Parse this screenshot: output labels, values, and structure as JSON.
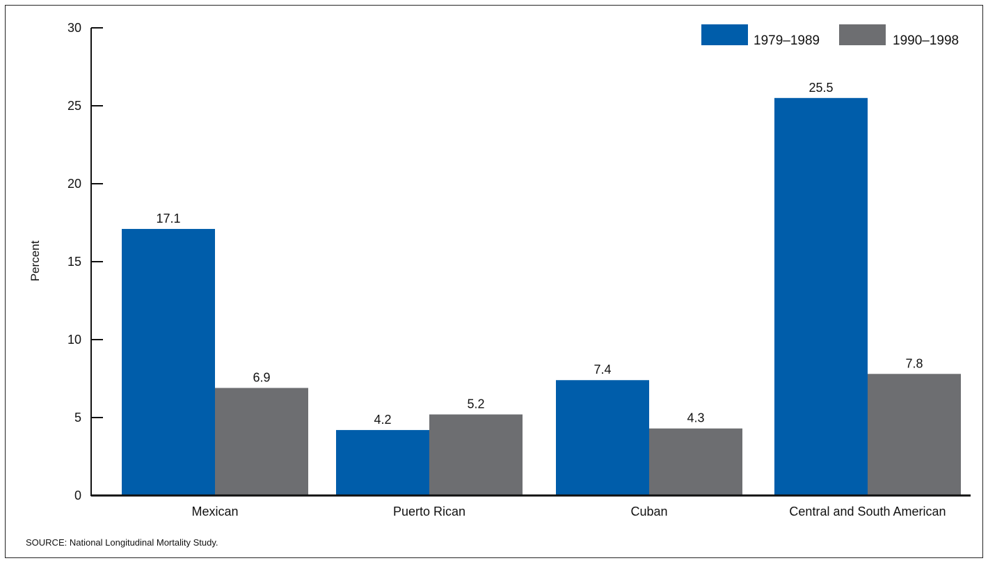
{
  "chart_data": {
    "type": "bar",
    "title": "",
    "xlabel": "",
    "ylabel": "Percent",
    "ylim": [
      0,
      30
    ],
    "yticks": [
      0,
      5,
      10,
      15,
      20,
      25,
      30
    ],
    "categories": [
      "Mexican",
      "Puerto Rican",
      "Cuban",
      "Central and South American"
    ],
    "series": [
      {
        "name": "1979–1989",
        "color": "#005DAA",
        "values": [
          17.1,
          4.2,
          7.4,
          25.5
        ]
      },
      {
        "name": "1990–1998",
        "color": "#6D6E71",
        "values": [
          6.9,
          5.2,
          4.3,
          7.8
        ]
      }
    ],
    "data_labels": [
      [
        "17.1",
        "4.2",
        "7.4",
        "25.5"
      ],
      [
        "6.9",
        "5.2",
        "4.3",
        "7.8"
      ]
    ],
    "legend_position": "top-right",
    "grid": false
  },
  "source_note": "SOURCE: National Longitudinal Mortality Study."
}
